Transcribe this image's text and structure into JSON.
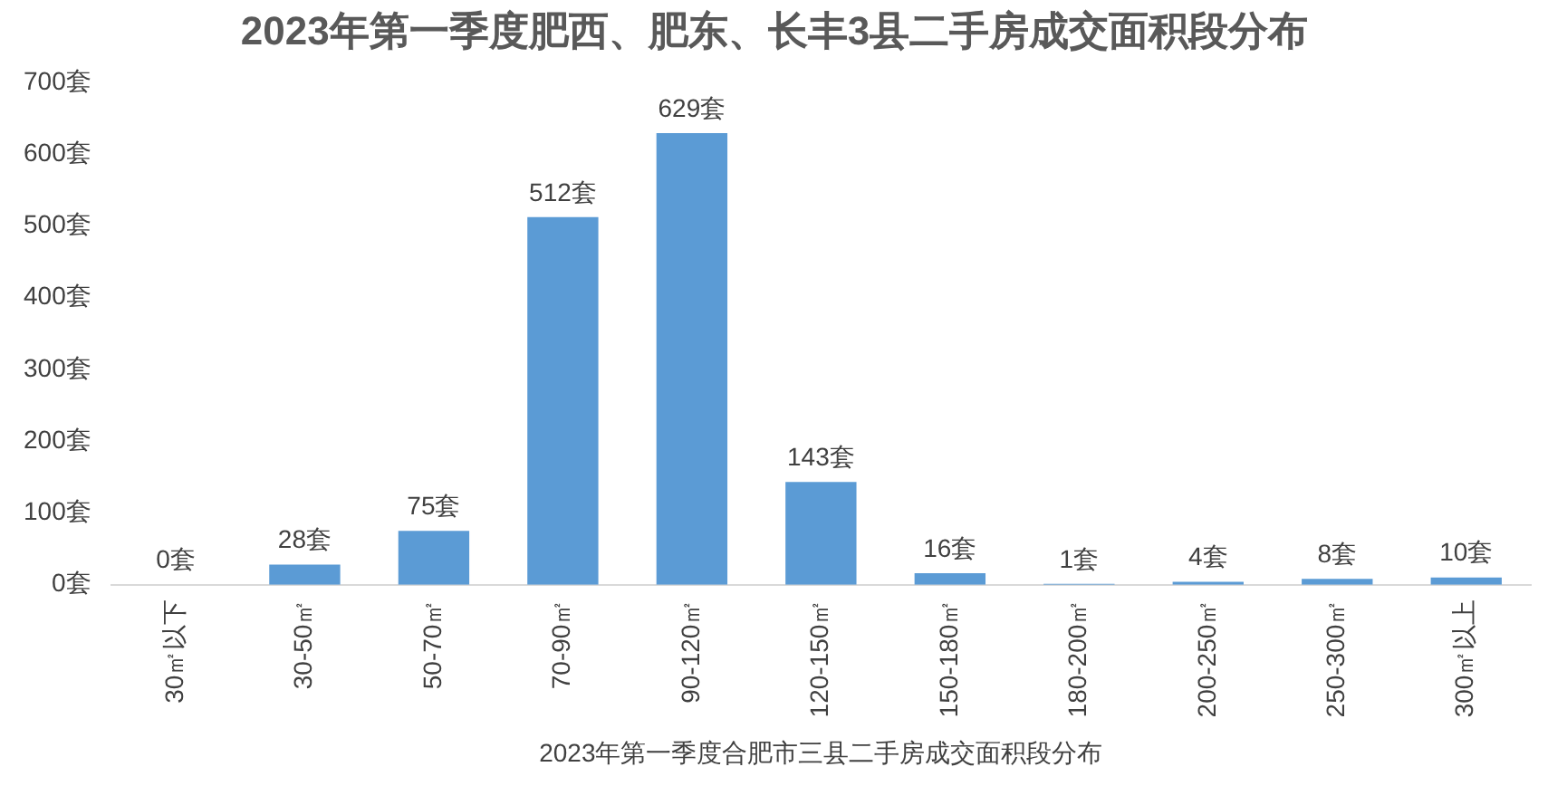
{
  "chart_data": {
    "type": "bar",
    "title": "2023年第一季度肥西、肥东、长丰3县二手房成交面积段分布",
    "xlabel": "2023年第一季度合肥市三县二手房成交面积段分布",
    "categories": [
      "30㎡以下",
      "30-50㎡",
      "50-70㎡",
      "70-90㎡",
      "90-120㎡",
      "120-150㎡",
      "150-180㎡",
      "180-200㎡",
      "200-250㎡",
      "250-300㎡",
      "300㎡以上"
    ],
    "values": [
      0,
      28,
      75,
      512,
      629,
      143,
      16,
      1,
      4,
      8,
      10
    ],
    "value_labels": [
      "0套",
      "28套",
      "75套",
      "512套",
      "629套",
      "143套",
      "16套",
      "1套",
      "4套",
      "8套",
      "10套"
    ],
    "color": "#5b9bd5",
    "ylim": [
      0,
      700
    ],
    "yticks": [
      {
        "value": 0,
        "label": "0套"
      },
      {
        "value": 100,
        "label": "100套"
      },
      {
        "value": 200,
        "label": "200套"
      },
      {
        "value": 300,
        "label": "300套"
      },
      {
        "value": 400,
        "label": "400套"
      },
      {
        "value": 500,
        "label": "500套"
      },
      {
        "value": 600,
        "label": "600套"
      },
      {
        "value": 700,
        "label": "700套"
      }
    ],
    "grid": false,
    "legend": false
  }
}
